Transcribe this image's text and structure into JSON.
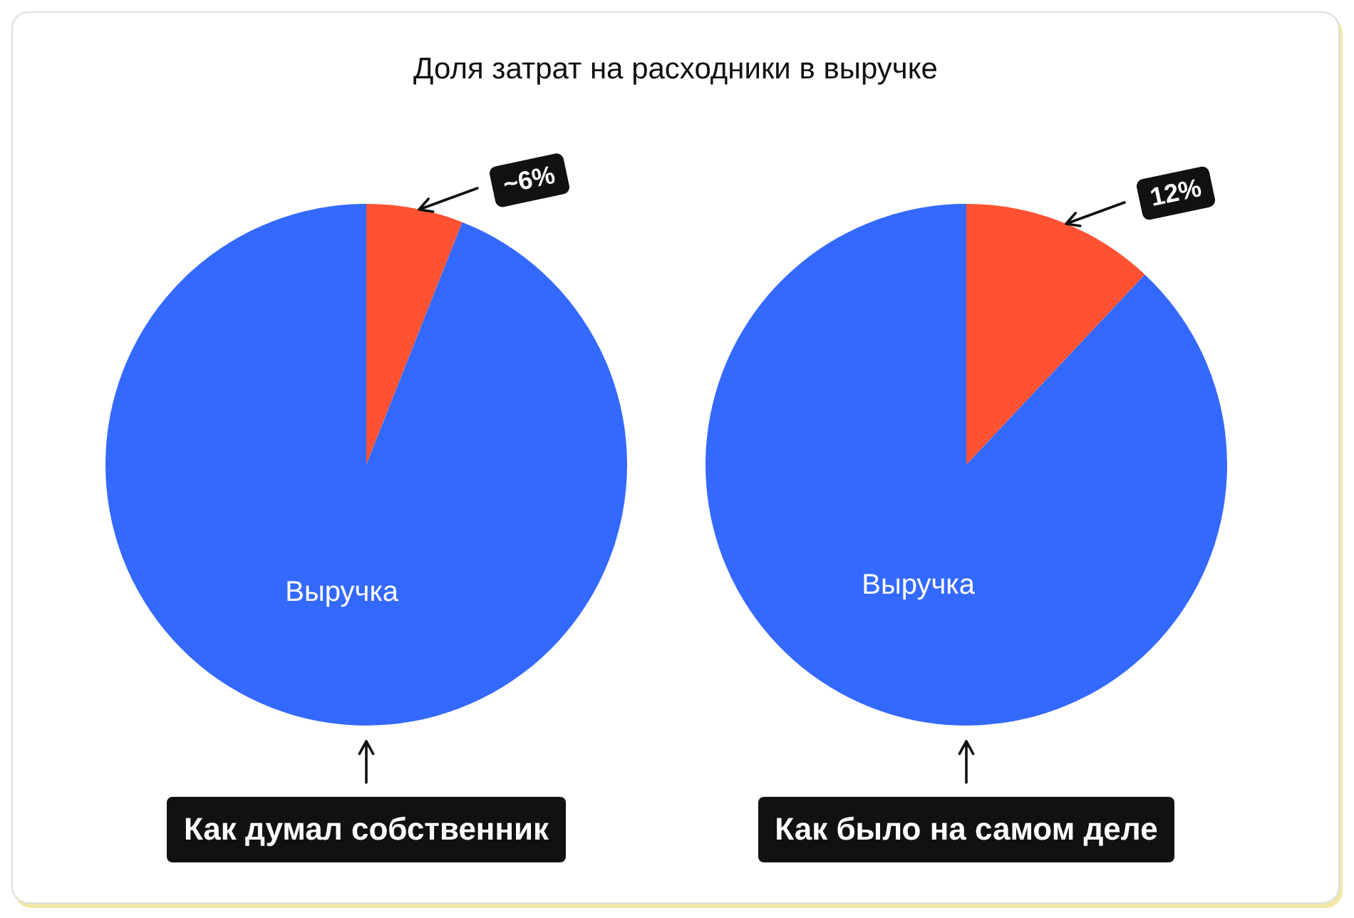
{
  "chart_data": [
    {
      "type": "pie",
      "title": "Доля затрат на расходники в выручке",
      "categories": [
        null,
        "Выручка"
      ],
      "values": [
        6,
        94
      ],
      "colors": [
        "#ff5233",
        "#3469ff"
      ],
      "value_labels": [
        "~6%",
        null
      ],
      "annotations": [
        "Как думал собственник"
      ]
    },
    {
      "type": "pie",
      "categories": [
        null,
        "Выручка"
      ],
      "values": [
        12,
        88
      ],
      "colors": [
        "#ff5233",
        "#3469ff"
      ],
      "value_labels": [
        "12%",
        null
      ],
      "annotations": [
        "Как было на самом деле"
      ]
    }
  ]
}
